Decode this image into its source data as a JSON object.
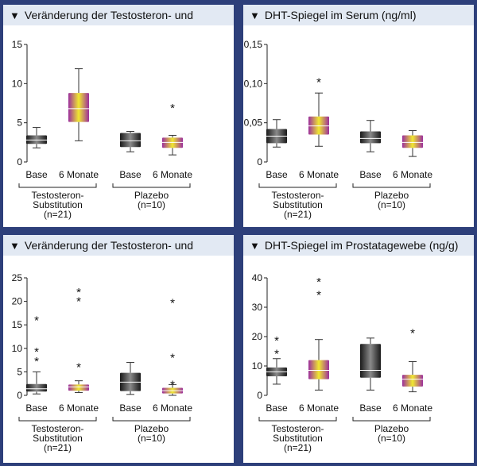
{
  "palette": {
    "background": "#2d3f7a",
    "title_bar": "#e2e9f3",
    "base_box": "#1a1a1a",
    "six_month_box_edge": "#9c2f9c",
    "six_month_box_center": "#f0e830"
  },
  "chart_data": [
    {
      "type": "boxplot",
      "title": "Veränderung der Testosteron- und",
      "ylim": [
        0,
        15
      ],
      "yticks": [
        "0",
        "5",
        "10",
        "15"
      ],
      "categories": [
        "Base",
        "6 Monate",
        "Base",
        "6 Monate"
      ],
      "groups": [
        {
          "label_lines": [
            "Testosteron-",
            "Substitution",
            "(n=21)"
          ],
          "span": [
            0,
            1
          ]
        },
        {
          "label_lines": [
            "Plazebo",
            "(n=10)"
          ],
          "span": [
            2,
            3
          ]
        }
      ],
      "boxes": [
        {
          "style": "base",
          "min": 1.8,
          "q1": 2.3,
          "median": 2.8,
          "q3": 3.4,
          "max": 4.4,
          "outliers": []
        },
        {
          "style": "six_months",
          "min": 2.7,
          "q1": 5.1,
          "median": 6.8,
          "q3": 8.8,
          "max": 11.9,
          "outliers": []
        },
        {
          "style": "base",
          "min": 1.3,
          "q1": 1.9,
          "median": 2.7,
          "q3": 3.7,
          "max": 3.9,
          "outliers": []
        },
        {
          "style": "six_months",
          "min": 0.9,
          "q1": 1.8,
          "median": 2.5,
          "q3": 3.1,
          "max": 3.4,
          "outliers": [
            7.2
          ]
        }
      ]
    },
    {
      "type": "boxplot",
      "title": "DHT-Spiegel im Serum (ng/ml)",
      "ylim": [
        0,
        0.15
      ],
      "yticks": [
        "0",
        "0,05",
        "0,10",
        "0,15"
      ],
      "categories": [
        "Base",
        "6 Monate",
        "Base",
        "6 Monate"
      ],
      "groups": [
        {
          "label_lines": [
            "Testosteron-",
            "Substitution",
            "(n=21)"
          ],
          "span": [
            0,
            1
          ]
        },
        {
          "label_lines": [
            "Plazebo",
            "(n=10)"
          ],
          "span": [
            2,
            3
          ]
        }
      ],
      "boxes": [
        {
          "style": "base",
          "min": 0.019,
          "q1": 0.024,
          "median": 0.033,
          "q3": 0.042,
          "max": 0.054,
          "outliers": []
        },
        {
          "style": "six_months",
          "min": 0.02,
          "q1": 0.035,
          "median": 0.046,
          "q3": 0.058,
          "max": 0.088,
          "outliers": [
            0.105
          ]
        },
        {
          "style": "base",
          "min": 0.013,
          "q1": 0.024,
          "median": 0.03,
          "q3": 0.039,
          "max": 0.053,
          "outliers": []
        },
        {
          "style": "six_months",
          "min": 0.007,
          "q1": 0.018,
          "median": 0.025,
          "q3": 0.034,
          "max": 0.04,
          "outliers": []
        }
      ]
    },
    {
      "type": "boxplot",
      "title": "Veränderung der Testosteron- und",
      "ylim": [
        0,
        25
      ],
      "yticks": [
        "0",
        "5",
        "10",
        "15",
        "20",
        "25"
      ],
      "categories": [
        "Base",
        "6 Monate",
        "Base",
        "6 Monate"
      ],
      "groups": [
        {
          "label_lines": [
            "Testosteron-",
            "Substitution",
            "(n=21)"
          ],
          "span": [
            0,
            1
          ]
        },
        {
          "label_lines": [
            "Plazebo",
            "(n=10)"
          ],
          "span": [
            2,
            3
          ]
        }
      ],
      "boxes": [
        {
          "style": "base",
          "min": 0.3,
          "q1": 0.8,
          "median": 1.4,
          "q3": 2.4,
          "max": 5.0,
          "outliers": [
            7.8,
            9.8,
            16.5
          ]
        },
        {
          "style": "six_months",
          "min": 0.6,
          "q1": 1.0,
          "median": 1.8,
          "q3": 2.3,
          "max": 3.1,
          "outliers": [
            6.5,
            20.5,
            22.5
          ]
        },
        {
          "style": "base",
          "min": 0.2,
          "q1": 0.9,
          "median": 2.8,
          "q3": 4.8,
          "max": 7.0,
          "outliers": []
        },
        {
          "style": "six_months",
          "min": 0.0,
          "q1": 0.4,
          "median": 1.0,
          "q3": 1.6,
          "max": 2.3,
          "outliers": [
            2.8,
            8.5,
            20.2
          ]
        }
      ]
    },
    {
      "type": "boxplot",
      "title": "DHT-Spiegel im Prostatagewebe (ng/g)",
      "ylim": [
        0,
        40
      ],
      "yticks": [
        "0",
        "10",
        "20",
        "30",
        "40"
      ],
      "categories": [
        "Base",
        "6 Monate",
        "Base",
        "6 Monate"
      ],
      "groups": [
        {
          "label_lines": [
            "Testosteron-",
            "Substitution",
            "(n=21)"
          ],
          "span": [
            0,
            1
          ]
        },
        {
          "label_lines": [
            "Plazebo",
            "(n=10)"
          ],
          "span": [
            2,
            3
          ]
        }
      ],
      "boxes": [
        {
          "style": "base",
          "min": 3.8,
          "q1": 6.5,
          "median": 8.0,
          "q3": 9.5,
          "max": 12.5,
          "outliers": [
            15.0,
            19.5
          ]
        },
        {
          "style": "six_months",
          "min": 1.8,
          "q1": 5.5,
          "median": 8.5,
          "q3": 12.0,
          "max": 19.0,
          "outliers": [
            35.0,
            39.5
          ]
        },
        {
          "style": "base",
          "min": 1.8,
          "q1": 6.0,
          "median": 8.5,
          "q3": 17.5,
          "max": 19.5,
          "outliers": []
        },
        {
          "style": "six_months",
          "min": 1.2,
          "q1": 3.0,
          "median": 5.5,
          "q3": 7.0,
          "max": 11.5,
          "outliers": [
            22.0
          ]
        }
      ]
    }
  ]
}
